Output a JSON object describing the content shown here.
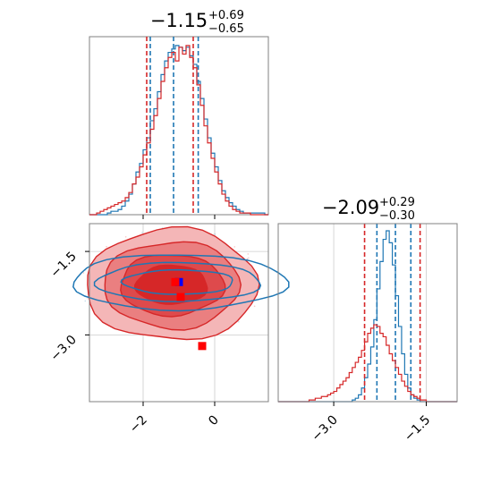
{
  "colors": {
    "red": "#d62728",
    "blue": "#1f77b4",
    "grid": "#cccccc",
    "frame": "#808080"
  },
  "chart_data": [
    {
      "type": "histogram",
      "panel": "top-left",
      "title": {
        "value": "−1.15",
        "plus": "+0.69",
        "minus": "−0.65"
      },
      "x_range": [
        -3.5,
        1.5
      ],
      "series": [
        {
          "name": "",
          "color": "#1f77b4",
          "dashed_quantiles": [
            -1.8,
            -1.15,
            -0.46
          ],
          "bin_start": -3.5,
          "bin_width": 0.1,
          "values": [
            0,
            0,
            0,
            0,
            0,
            0.01,
            0.02,
            0.02,
            0.03,
            0.05,
            0.08,
            0.12,
            0.18,
            0.25,
            0.3,
            0.38,
            0.45,
            0.55,
            0.62,
            0.72,
            0.82,
            0.9,
            0.95,
            0.97,
            0.99,
            0.98,
            0.96,
            0.98,
            0.93,
            0.88,
            0.78,
            0.68,
            0.56,
            0.45,
            0.36,
            0.28,
            0.2,
            0.14,
            0.1,
            0.07,
            0.05,
            0.03,
            0.02,
            0.01,
            0.01,
            0.01,
            0.01,
            0.01,
            0.01,
            0
          ]
        },
        {
          "name": "",
          "color": "#d62728",
          "dashed_quantiles": [
            -1.85,
            -0.55
          ],
          "bin_start": -3.5,
          "bin_width": 0.1,
          "values": [
            0,
            0,
            0.01,
            0.02,
            0.03,
            0.04,
            0.05,
            0.06,
            0.07,
            0.08,
            0.1,
            0.13,
            0.18,
            0.22,
            0.28,
            0.35,
            0.42,
            0.5,
            0.58,
            0.68,
            0.78,
            0.86,
            0.92,
            0.95,
            0.9,
            0.98,
            0.94,
            0.99,
            0.92,
            0.86,
            0.76,
            0.64,
            0.52,
            0.42,
            0.33,
            0.25,
            0.18,
            0.12,
            0.08,
            0.05,
            0.03,
            0.02,
            0.01,
            0.01,
            0.01,
            0,
            0,
            0,
            0,
            0
          ]
        }
      ]
    },
    {
      "type": "contour",
      "panel": "bottom-left",
      "x_range": [
        -3.5,
        1.5
      ],
      "y_range": [
        -4.2,
        -1.0
      ],
      "x_ticks": [
        "−2",
        "0"
      ],
      "x_tick_values": [
        -2,
        0
      ],
      "y_ticks": [
        "−1.5",
        "−3.0"
      ],
      "y_tick_values": [
        -1.5,
        -3.0
      ],
      "red_contours": {
        "center": [
          -1.2,
          -2.1
        ],
        "levels": [
          [
            2.4,
            1.0
          ],
          [
            1.9,
            0.78
          ],
          [
            1.45,
            0.55
          ],
          [
            1.0,
            0.35
          ]
        ]
      },
      "blue_contours": {
        "center": [
          -1.0,
          -2.05
        ],
        "levels": [
          [
            3.0,
            0.5
          ],
          [
            2.3,
            0.35
          ],
          [
            1.55,
            0.22
          ]
        ]
      },
      "markers": [
        {
          "color": "#0000ff",
          "x": -1.0,
          "y": -2.05
        },
        {
          "color": "#ff0000",
          "x": -1.1,
          "y": -2.05
        },
        {
          "color": "#ff0000",
          "x": -0.95,
          "y": -2.32
        },
        {
          "color": "#ff0000",
          "x": -0.35,
          "y": -3.2
        }
      ]
    },
    {
      "type": "histogram",
      "panel": "bottom-right",
      "title": {
        "value": "−2.09",
        "plus": "+0.29",
        "minus": "−0.30"
      },
      "x_range": [
        -3.9,
        -1.0
      ],
      "x_ticks": [
        "−3.0",
        "−1.5"
      ],
      "x_tick_values": [
        -3.0,
        -1.5
      ],
      "series": [
        {
          "name": "",
          "color": "#1f77b4",
          "dashed_quantiles": [
            -2.3,
            -2.0,
            -1.75
          ],
          "bin_start": -3.9,
          "bin_width": 0.05,
          "values": [
            0,
            0,
            0,
            0,
            0,
            0,
            0,
            0,
            0,
            0,
            0,
            0,
            0,
            0,
            0,
            0,
            0,
            0,
            0,
            0,
            0,
            0,
            0,
            0,
            0.01,
            0.02,
            0.04,
            0.08,
            0.14,
            0.22,
            0.32,
            0.48,
            0.66,
            0.82,
            0.95,
            1.0,
            0.93,
            0.8,
            0.62,
            0.44,
            0.28,
            0.16,
            0.08,
            0.04,
            0.02,
            0.01,
            0,
            0,
            0,
            0,
            0,
            0,
            0,
            0,
            0,
            0,
            0,
            0
          ]
        },
        {
          "name": "",
          "color": "#d62728",
          "dashed_quantiles": [
            -2.5,
            -1.6
          ],
          "bin_start": -3.9,
          "bin_width": 0.05,
          "values": [
            0,
            0,
            0,
            0,
            0,
            0,
            0,
            0,
            0,
            0,
            0.01,
            0.01,
            0.02,
            0.02,
            0.03,
            0.03,
            0.04,
            0.05,
            0.06,
            0.08,
            0.1,
            0.12,
            0.14,
            0.17,
            0.2,
            0.23,
            0.26,
            0.3,
            0.35,
            0.4,
            0.43,
            0.45,
            0.44,
            0.4,
            0.38,
            0.33,
            0.28,
            0.24,
            0.2,
            0.16,
            0.12,
            0.09,
            0.06,
            0.04,
            0.03,
            0.02,
            0.01,
            0.01,
            0,
            0,
            0,
            0,
            0,
            0,
            0,
            0,
            0,
            0
          ]
        }
      ]
    }
  ]
}
